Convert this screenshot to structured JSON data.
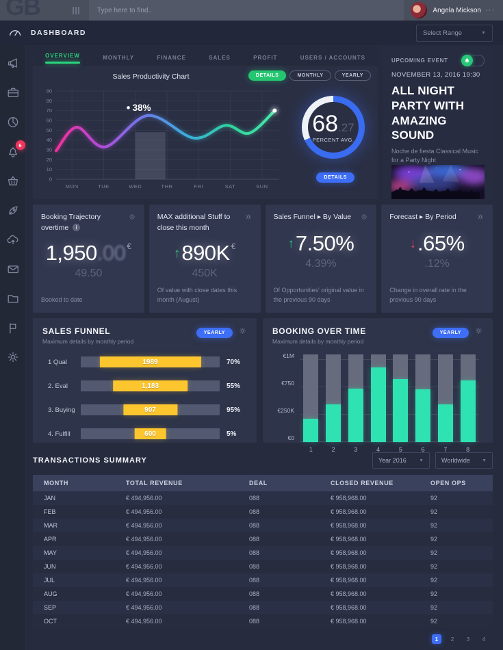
{
  "topbar": {
    "logo": "GB",
    "search_placeholder": "Type here to find..",
    "user_name": "Angela Mickson",
    "user_menu": "···"
  },
  "header": {
    "title": "DASHBOARD",
    "range_select": "Select Range"
  },
  "sidebar": {
    "notification_count": "6",
    "items": [
      "announcements",
      "projects",
      "reports",
      "notifications",
      "orders",
      "launch",
      "cloud-upload",
      "messages",
      "files",
      "flags",
      "settings"
    ]
  },
  "overview": {
    "tabs": [
      "OVERVIEW",
      "MONTHLY",
      "FINANCE",
      "SALES",
      "PROFIT",
      "USERS / ACCOUNTS"
    ],
    "active_tab": "OVERVIEW",
    "buttons": {
      "details": "DETAILS",
      "monthly": "MONTHLY",
      "yearly": "YEARLY"
    },
    "gauge": {
      "value_int": "68",
      "value_dec": ".27",
      "label": "PERCENT AVG.",
      "button": "DETAILS",
      "percent": 68.27
    }
  },
  "event": {
    "label": "UPCOMING EVENT",
    "datetime": "NOVEMBER 13, 2016  19:30",
    "title": "ALL NIGHT PARTY WITH AMAZING SOUND",
    "subtitle": "Noche de fiesta Classical Music for a Party Night"
  },
  "stats": [
    {
      "title": "Booking Trajectory overtime",
      "info": true,
      "trend": "none",
      "currency": "€",
      "value": "1,950",
      "value_dim": ".00",
      "sub": "49.50",
      "desc": "Booked to date"
    },
    {
      "title": "MAX additional Stuff to close this month",
      "info": false,
      "trend": "up",
      "currency": "€",
      "value": "890K",
      "value_dim": "",
      "sub": "450K",
      "desc": "Of value with close dates this month (August)"
    },
    {
      "title": "Sales Funnel ▸ By Value",
      "info": false,
      "trend": "up",
      "currency": "",
      "value": "7.50%",
      "value_dim": "",
      "sub": "4.39%",
      "desc": "Of Opportunities' original value in the previous 90 days"
    },
    {
      "title": "Forecast ▸ By Period",
      "info": false,
      "trend": "down",
      "currency": "",
      "value": ".65%",
      "value_dim": "",
      "sub": ".12%",
      "desc": "Change in overall rate in the previous 90 days"
    }
  ],
  "sales_funnel": {
    "title": "SALES FUNNEL",
    "subtitle": "Maximum details by monthly period",
    "badge": "YEARLY"
  },
  "booking": {
    "title": "BOOKING OVER TIME",
    "subtitle": "Maximum details by monthly period",
    "badge": "YEARLY"
  },
  "transactions": {
    "title": "TRANSACTIONS SUMMARY",
    "filters": [
      "Year 2016",
      "Worldwide"
    ],
    "columns": [
      "MONTH",
      "TOTAL REVENUE",
      "DEAL",
      "CLOSED REVENUE",
      "OPEN OPS"
    ],
    "rows": [
      [
        "JAN",
        "€ 494,956.00",
        "088",
        "€ 958,968.00",
        "92"
      ],
      [
        "FEB",
        "€ 494,956.00",
        "088",
        "€ 958,968.00",
        "92"
      ],
      [
        "MAR",
        "€ 494,956.00",
        "088",
        "€ 958,968.00",
        "92"
      ],
      [
        "APR",
        "€ 494,956.00",
        "088",
        "€ 958,968.00",
        "92"
      ],
      [
        "MAY",
        "€ 494,956.00",
        "088",
        "€ 958,968.00",
        "92"
      ],
      [
        "JUN",
        "€ 494,956.00",
        "088",
        "€ 958,968.00",
        "92"
      ],
      [
        "JUL",
        "€ 494,956.00",
        "088",
        "€ 958,968.00",
        "92"
      ],
      [
        "AUG",
        "€ 494,956.00",
        "088",
        "€ 958,968.00",
        "92"
      ],
      [
        "SEP",
        "€ 494,956.00",
        "088",
        "€ 958,968.00",
        "92"
      ],
      [
        "OCT",
        "€ 494,956.00",
        "088",
        "€ 958,968.00",
        "92"
      ]
    ],
    "pagination": [
      "1",
      "2",
      "3",
      "4"
    ],
    "active_page": "1"
  },
  "chart_data": [
    {
      "type": "line",
      "title": "Sales Productivity Chart",
      "x_labels": [
        "MON",
        "TUE",
        "WED",
        "THR",
        "FRI",
        "SAT",
        "SUN"
      ],
      "ylim": [
        0,
        90
      ],
      "y_tick_step": 10,
      "points": [
        [
          -0.5,
          29
        ],
        [
          0.15,
          53
        ],
        [
          1.05,
          33
        ],
        [
          2.4,
          65
        ],
        [
          3.85,
          42
        ],
        [
          4.85,
          55
        ],
        [
          5.6,
          47
        ],
        [
          6.4,
          70
        ]
      ],
      "annotation": {
        "label": "38%",
        "x": 1.78,
        "y": 73
      },
      "highlight_band": {
        "x0": 2.0,
        "x1": 2.95,
        "y_top": 48
      },
      "gradient_colors": [
        "#f3309b",
        "#b44ad8",
        "#6e79e8",
        "#3aafdd",
        "#2fd49c",
        "#49e8a9"
      ]
    },
    {
      "type": "gauge",
      "value": 68.27,
      "label": "PERCENT AVG."
    },
    {
      "type": "bar-horizontal",
      "title": "SALES FUNNEL",
      "rows": [
        {
          "label": "1 Qual",
          "value": "1989",
          "percent": "70%",
          "bar_width_pct": 73
        },
        {
          "label": "2. Eval",
          "value": "1,183",
          "percent": "55%",
          "bar_width_pct": 54
        },
        {
          "label": "3. Buying",
          "value": "907",
          "percent": "95%",
          "bar_width_pct": 39
        },
        {
          "label": "4. Fulfill",
          "value": "600",
          "percent": "5%",
          "bar_width_pct": 23
        }
      ],
      "bar_color": "#fdc62f"
    },
    {
      "type": "bar",
      "title": "BOOKING OVER TIME",
      "categories": [
        "1",
        "2",
        "3",
        "4",
        "5",
        "6",
        "7",
        "8"
      ],
      "values": [
        280,
        460,
        650,
        910,
        770,
        640,
        455,
        750
      ],
      "ylim": [
        0,
        1000
      ],
      "y_ticks": [
        {
          "label": "€1M",
          "frac": 1
        },
        {
          "label": "€750",
          "frac": 0.667
        },
        {
          "label": "€250K",
          "frac": 0.333
        },
        {
          "label": "€0",
          "frac": 0
        }
      ],
      "bar_color": "#2fe2b2"
    }
  ],
  "colors": {
    "accent_green": "#25c671",
    "accent_blue": "#3d6ef5",
    "accent_yellow": "#fdc62f",
    "accent_teal": "#2fe2b2",
    "accent_red": "#f0355f"
  }
}
